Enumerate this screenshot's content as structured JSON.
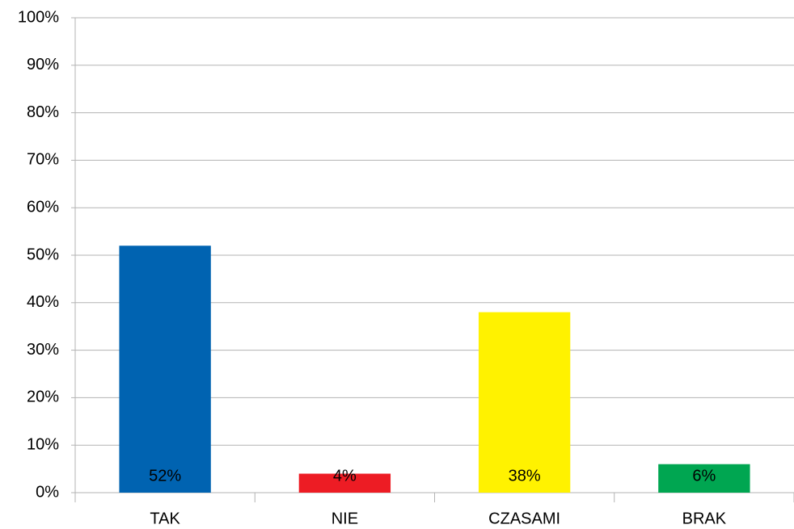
{
  "chart_data": {
    "type": "bar",
    "categories": [
      "TAK",
      "NIE",
      "CZASAMI",
      "BRAK"
    ],
    "values": [
      52,
      4,
      38,
      6
    ],
    "value_labels": [
      "52%",
      "4%",
      "38%",
      "6%"
    ],
    "colors": [
      "#0063b1",
      "#ed1c24",
      "#fff200",
      "#00a651"
    ],
    "ylim": [
      0,
      100
    ],
    "yticks": [
      {
        "value": 0,
        "label": "0%"
      },
      {
        "value": 10,
        "label": "10%"
      },
      {
        "value": 20,
        "label": "20%"
      },
      {
        "value": 30,
        "label": "30%"
      },
      {
        "value": 40,
        "label": "40%"
      },
      {
        "value": 50,
        "label": "50%"
      },
      {
        "value": 60,
        "label": "60%"
      },
      {
        "value": 70,
        "label": "70%"
      },
      {
        "value": 80,
        "label": "80%"
      },
      {
        "value": 90,
        "label": "90%"
      },
      {
        "value": 100,
        "label": "100%"
      }
    ],
    "grid": true
  }
}
